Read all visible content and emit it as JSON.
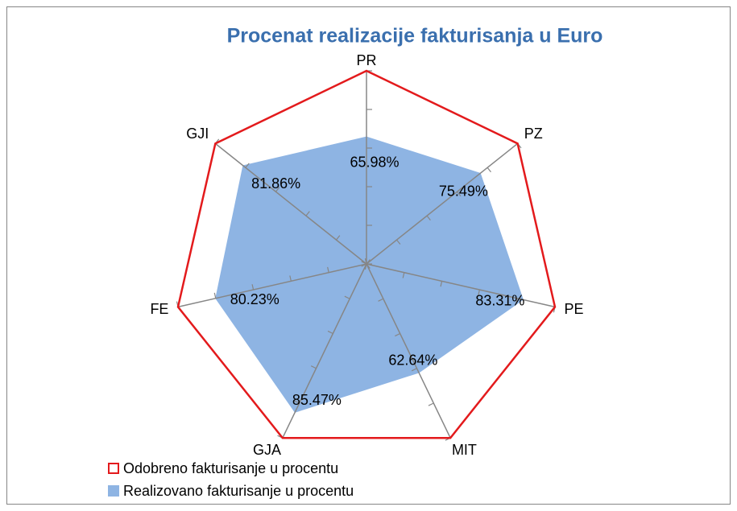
{
  "chart_data": {
    "type": "radar",
    "title": "Procenat realizacije fakturisanja u  Euro",
    "categories": [
      "PR",
      "PZ",
      "PE",
      "MIT",
      "GJA",
      "FE",
      "GJI"
    ],
    "series": [
      {
        "name": "Odobreno fakturisanje u procentu",
        "color": "#e31a1c",
        "fill": false,
        "values": [
          100,
          100,
          100,
          100,
          100,
          100,
          100
        ]
      },
      {
        "name": "Realizovano fakturisanje u procentu",
        "color": "#8eb4e3",
        "fill": true,
        "values": [
          65.98,
          75.49,
          83.31,
          62.64,
          85.47,
          80.23,
          81.86
        ],
        "value_labels": [
          "65.98%",
          "75.49%",
          "83.31%",
          "62.64%",
          "85.47%",
          "80.23%",
          "81.86%"
        ]
      }
    ],
    "ylim": [
      0,
      100
    ],
    "yticks": [
      0,
      20,
      40,
      60,
      80,
      100
    ],
    "legend": "bottom-left"
  }
}
